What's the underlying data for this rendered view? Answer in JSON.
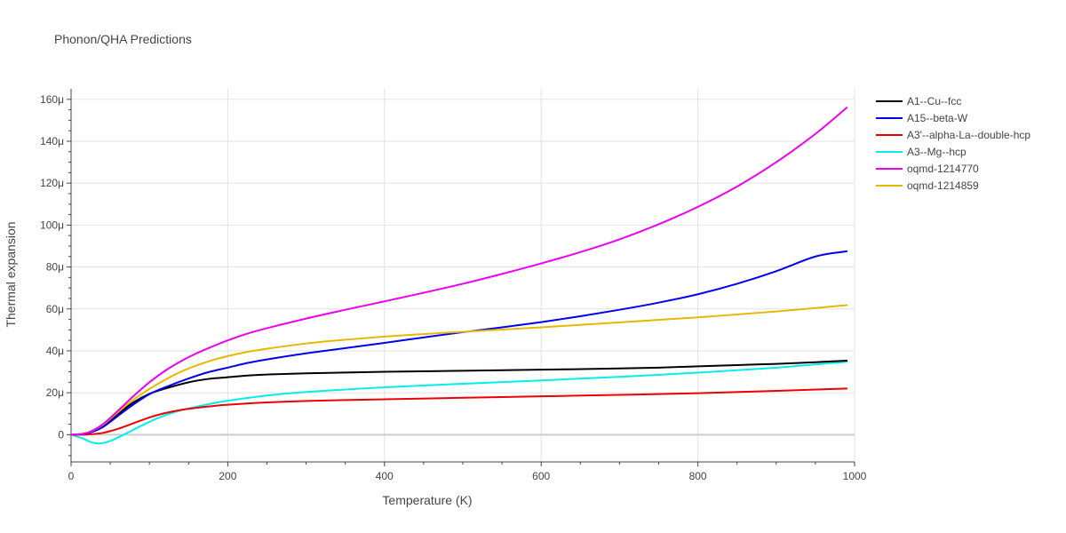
{
  "chart_data": {
    "type": "line",
    "title": "Phonon/QHA Predictions",
    "xlabel": "Temperature (K)",
    "ylabel": "Thermal expansion",
    "xlim": [
      0,
      1000
    ],
    "ylim": [
      -13,
      165
    ],
    "y_unit_suffix": "μ",
    "x_ticks": [
      0,
      200,
      400,
      600,
      800,
      1000
    ],
    "y_ticks": [
      0,
      20,
      40,
      60,
      80,
      100,
      120,
      140,
      160
    ],
    "x_tick_labels": [
      "0",
      "200",
      "400",
      "600",
      "800",
      "1000"
    ],
    "y_tick_labels": [
      "0",
      "20μ",
      "40μ",
      "60μ",
      "80μ",
      "100μ",
      "120μ",
      "140μ",
      "160μ"
    ],
    "grid": true,
    "legend_position": "right",
    "series": [
      {
        "name": "A1--Cu--fcc",
        "color": "#000000",
        "x": [
          0,
          20,
          40,
          60,
          80,
          100,
          120,
          150,
          175,
          200,
          225,
          250,
          300,
          400,
          500,
          600,
          700,
          750,
          800,
          850,
          900,
          950,
          990
        ],
        "y": [
          0,
          0.8,
          4,
          10,
          15.5,
          19.5,
          22,
          25,
          26.6,
          27.4,
          28.2,
          28.7,
          29.3,
          30,
          30.5,
          31,
          31.6,
          32,
          32.6,
          33.2,
          33.8,
          34.6,
          35.3
        ]
      },
      {
        "name": "A15--beta-W",
        "color": "#0000ee",
        "x": [
          0,
          20,
          40,
          60,
          80,
          100,
          120,
          150,
          175,
          200,
          225,
          250,
          300,
          350,
          400,
          450,
          500,
          550,
          600,
          650,
          700,
          750,
          800,
          850,
          900,
          950,
          990
        ],
        "y": [
          0,
          0.6,
          3.5,
          9,
          14.5,
          19.3,
          22.6,
          26.8,
          29.8,
          32,
          34.2,
          35.9,
          38.8,
          41.3,
          43.8,
          46.4,
          48.9,
          51.2,
          53.7,
          56.5,
          59.6,
          63,
          67,
          72,
          78,
          85,
          87.5
        ]
      },
      {
        "name": "A3'--alpha-La--double-hcp",
        "color": "#ee0000",
        "x": [
          0,
          20,
          40,
          60,
          80,
          100,
          120,
          140,
          160,
          180,
          200,
          250,
          300,
          400,
          500,
          600,
          700,
          800,
          900,
          990
        ],
        "y": [
          0,
          0.1,
          0.8,
          2.8,
          5.5,
          8.2,
          10.3,
          11.8,
          12.8,
          13.6,
          14.3,
          15.4,
          16.1,
          16.9,
          17.6,
          18.3,
          19,
          19.8,
          20.9,
          22
        ]
      },
      {
        "name": "A3--Mg--hcp",
        "color": "#00eeee",
        "x": [
          0,
          15,
          25,
          35,
          45,
          55,
          70,
          90,
          110,
          130,
          150,
          175,
          200,
          250,
          300,
          400,
          500,
          600,
          700,
          800,
          900,
          990
        ],
        "y": [
          0,
          -1.8,
          -3.5,
          -4.2,
          -3.6,
          -2.2,
          0.5,
          4.3,
          7.8,
          10.5,
          12.5,
          14.5,
          16.2,
          18.7,
          20.4,
          22.6,
          24.3,
          25.9,
          27.6,
          29.6,
          32,
          34.8
        ]
      },
      {
        "name": "oqmd-1214770",
        "color": "#ee00ee",
        "x": [
          0,
          20,
          40,
          60,
          80,
          100,
          120,
          140,
          160,
          180,
          200,
          225,
          250,
          300,
          350,
          400,
          450,
          500,
          550,
          600,
          650,
          700,
          750,
          800,
          850,
          900,
          950,
          990
        ],
        "y": [
          0,
          0.8,
          4.8,
          11.5,
          18.5,
          25,
          30.5,
          35,
          38.8,
          42,
          45,
          48.2,
          50.8,
          55.4,
          59.6,
          63.6,
          67.7,
          72,
          76.7,
          81.7,
          87.1,
          93.2,
          100.4,
          108.7,
          118.4,
          130,
          143.5,
          156
        ]
      },
      {
        "name": "oqmd-1214859",
        "color": "#e6b800",
        "x": [
          0,
          20,
          40,
          60,
          80,
          100,
          120,
          140,
          160,
          180,
          200,
          225,
          250,
          300,
          350,
          400,
          450,
          500,
          600,
          700,
          800,
          900,
          990
        ],
        "y": [
          0,
          0.8,
          4.5,
          10.8,
          16.8,
          21.8,
          26.2,
          30,
          33,
          35.5,
          37.5,
          39.5,
          41,
          43.5,
          45.3,
          46.8,
          48,
          49.1,
          51.2,
          53.6,
          56,
          58.8,
          61.8
        ]
      }
    ]
  }
}
